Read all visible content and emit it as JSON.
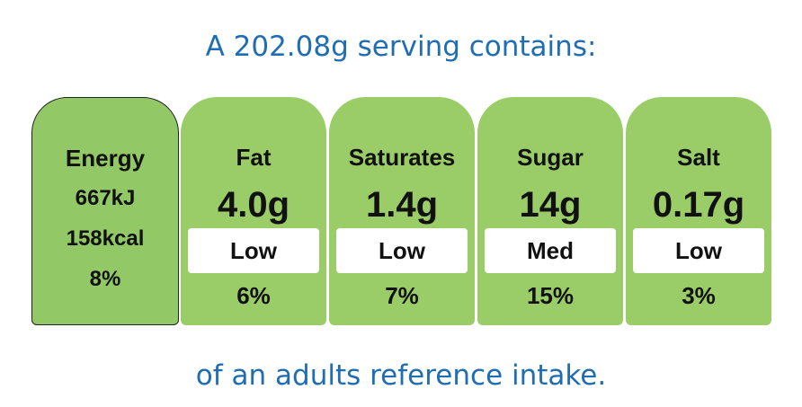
{
  "header": {
    "title": "A 202.08g serving contains:"
  },
  "energy": {
    "label": "Energy",
    "kj": "667kJ",
    "kcal": "158kcal",
    "percent": "8%"
  },
  "nutrients": [
    {
      "name": "Fat",
      "amount": "4.0g",
      "level": "Low",
      "percent": "6%"
    },
    {
      "name": "Saturates",
      "amount": "1.4g",
      "level": "Low",
      "percent": "7%"
    },
    {
      "name": "Sugar",
      "amount": "14g",
      "level": "Med",
      "percent": "15%"
    },
    {
      "name": "Salt",
      "amount": "0.17g",
      "level": "Low",
      "percent": "3%"
    }
  ],
  "footer": {
    "text": "of an adults reference intake."
  }
}
